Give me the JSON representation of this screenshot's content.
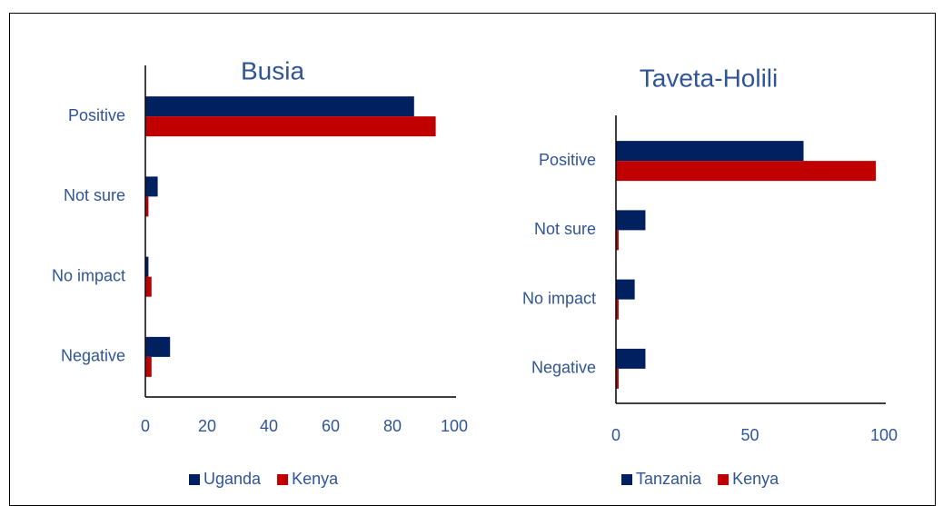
{
  "chart_data": [
    {
      "type": "barh",
      "title": "Busia",
      "categories": [
        "Positive",
        "Not sure",
        "No impact",
        "Negative"
      ],
      "series": [
        {
          "name": "Uganda",
          "color": "#002060",
          "values": [
            87,
            4,
            1,
            8
          ]
        },
        {
          "name": "Kenya",
          "color": "#c00000",
          "values": [
            94,
            1,
            2,
            2
          ]
        }
      ],
      "xlim": [
        0,
        100
      ],
      "xticks": [
        0,
        20,
        40,
        60,
        80,
        100
      ],
      "legend": "bottom"
    },
    {
      "type": "barh",
      "title": "Taveta-Holili",
      "categories": [
        "Positive",
        "Not sure",
        "No impact",
        "Negative"
      ],
      "series": [
        {
          "name": "Tanzania",
          "color": "#002060",
          "values": [
            70,
            11,
            7,
            11
          ]
        },
        {
          "name": "Kenya",
          "color": "#c00000",
          "values": [
            97,
            1,
            1,
            1
          ]
        }
      ],
      "xlim": [
        0,
        100
      ],
      "xticks": [
        0,
        50,
        100
      ],
      "legend": "bottom"
    }
  ]
}
